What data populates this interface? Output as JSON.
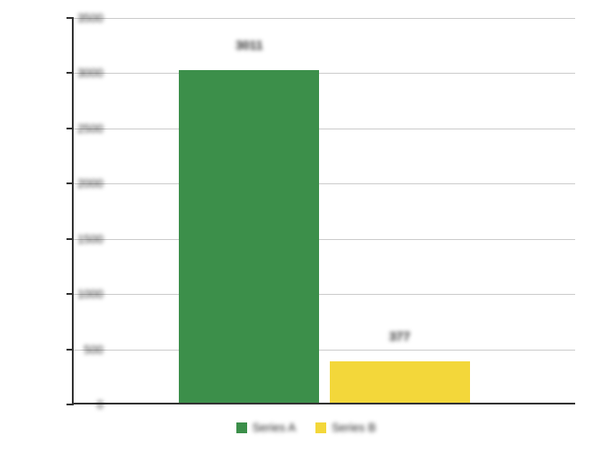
{
  "chart": {
    "type": "bar",
    "background_color": "#ffffff",
    "axis_color": "#333333",
    "grid_color": "#cccccc",
    "ylim": [
      0,
      3500
    ],
    "yticks": [
      0,
      500,
      1000,
      1500,
      2000,
      2500,
      3000,
      3500
    ],
    "ytick_labels": [
      "0",
      "500",
      "1000",
      "1500",
      "2000",
      "2500",
      "3000",
      "3500"
    ],
    "bars": [
      {
        "value": 3011,
        "label": "3011",
        "color": "#3c8f4a",
        "x_percent": 35,
        "width_percent": 28
      },
      {
        "value": 377,
        "label": "377",
        "color": "#f3d73a",
        "x_percent": 65,
        "width_percent": 28
      }
    ],
    "legend": [
      {
        "color": "#3c8f4a",
        "label": "Series A"
      },
      {
        "color": "#f3d73a",
        "label": "Series B"
      }
    ],
    "tick_fontsize": 13,
    "barlabel_fontsize": 14,
    "legend_fontsize": 13
  }
}
